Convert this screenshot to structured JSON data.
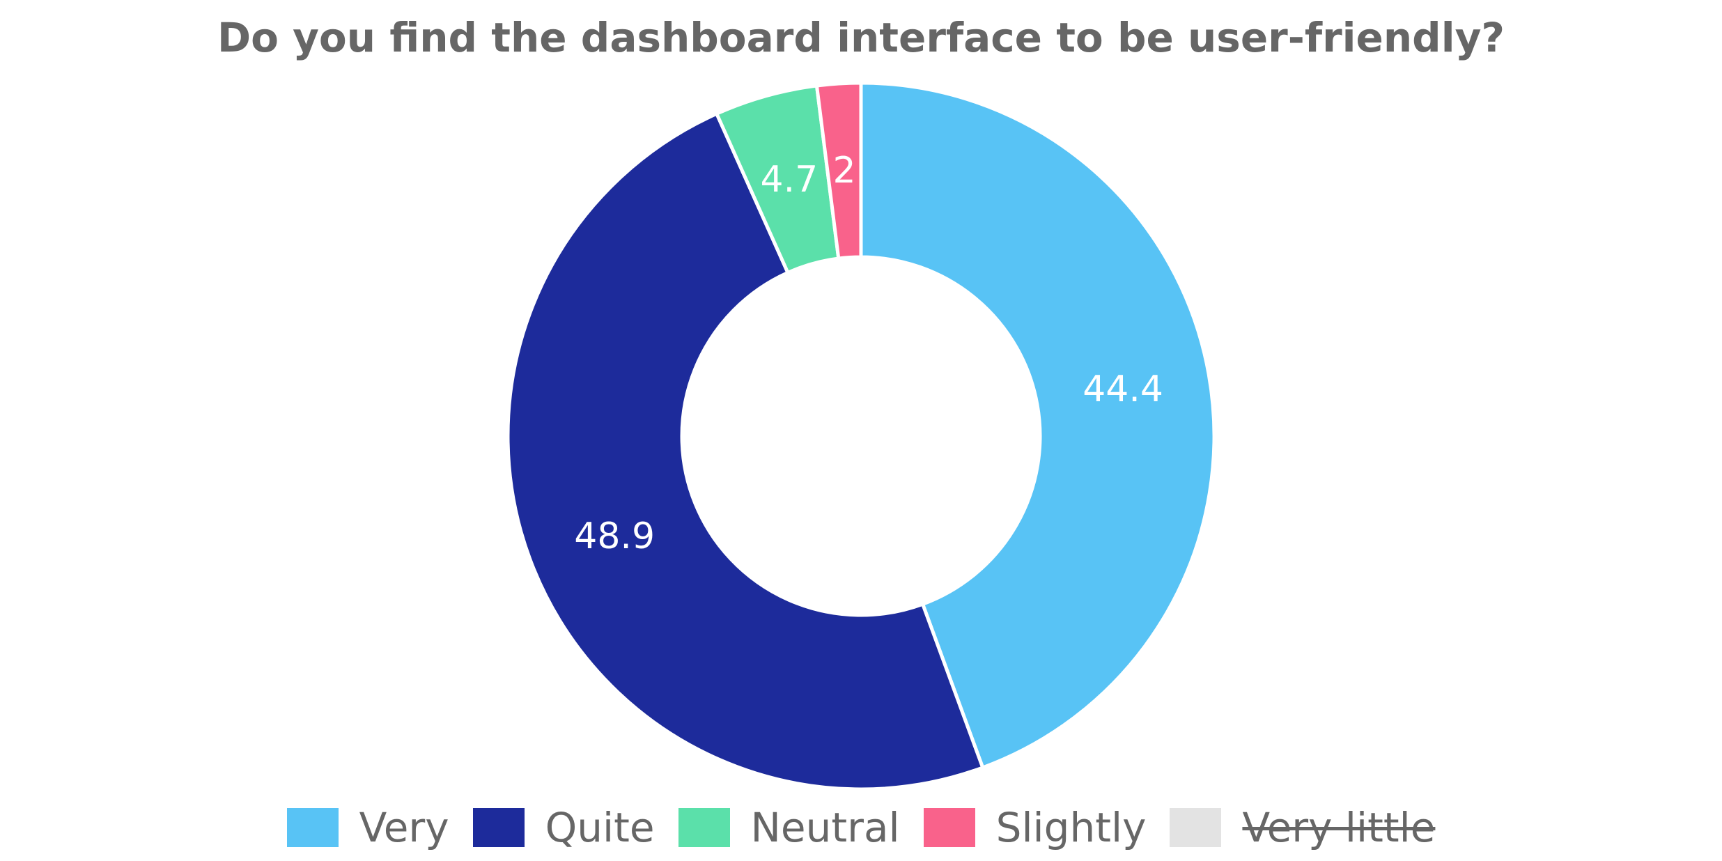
{
  "chart_data": {
    "type": "pie",
    "style": "donut",
    "title": "Do you find the dashboard interface to be user-friendly?",
    "categories": [
      "Very",
      "Quite",
      "Neutral",
      "Slightly",
      "Very little"
    ],
    "values": [
      44.4,
      48.9,
      4.7,
      2,
      0
    ],
    "labels": [
      "44.4",
      "48.9",
      "4.7",
      "2",
      ""
    ],
    "colors": [
      "#58c3f5",
      "#1d2b9b",
      "#5be0aa",
      "#f9628b",
      "#e3e3e3"
    ],
    "hidden": [
      false,
      false,
      false,
      false,
      true
    ],
    "legend_position": "bottom",
    "direction": "clockwise",
    "start": "top"
  }
}
